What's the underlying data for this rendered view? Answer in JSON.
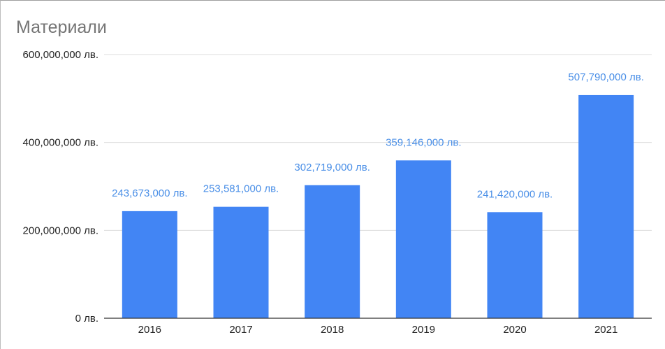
{
  "chart_data": {
    "type": "bar",
    "title": "Материали",
    "categories": [
      "2016",
      "2017",
      "2018",
      "2019",
      "2020",
      "2021"
    ],
    "values": [
      243673000,
      253581000,
      302719000,
      359146000,
      241420000,
      507790000
    ],
    "value_labels": [
      "243,673,000 лв.",
      "253,581,000 лв.",
      "302,719,000 лв.",
      "359,146,000 лв.",
      "241,420,000 лв.",
      "507,790,000 лв."
    ],
    "ylim": [
      0,
      600000000
    ],
    "yticks": [
      0,
      200000000,
      400000000,
      600000000
    ],
    "ytick_labels": [
      "0 лв.",
      "200,000,000 лв.",
      "400,000,000 лв.",
      "600,000,000 лв."
    ],
    "xlabel": "",
    "ylabel": "",
    "grid": true,
    "bar_color": "#4285f4",
    "label_color": "#4a8fe7"
  }
}
